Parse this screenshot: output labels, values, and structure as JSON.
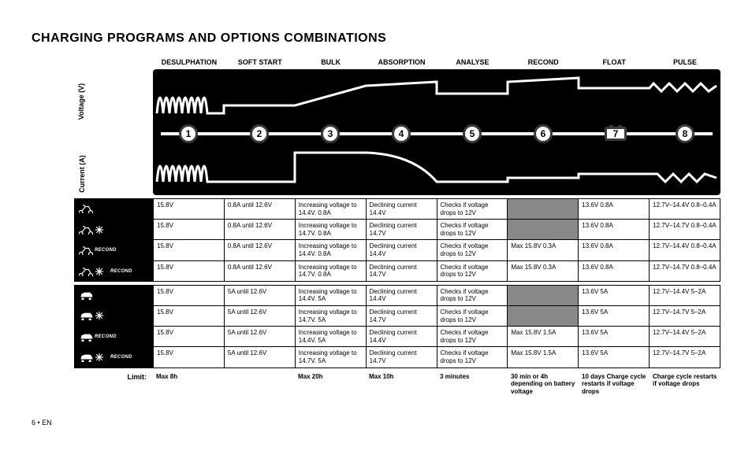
{
  "title": "CHARGING PROGRAMS AND OPTIONS COMBINATIONS",
  "stages": [
    "DESULPHATION",
    "SOFT START",
    "BULK",
    "ABSORPTION",
    "ANALYSE",
    "RECOND",
    "FLOAT",
    "PULSE"
  ],
  "stage_numbers": [
    "1",
    "2",
    "3",
    "4",
    "5",
    "6",
    "7",
    "8"
  ],
  "axis": {
    "voltage": "Voltage (V)",
    "current": "Current (A)"
  },
  "chart": {
    "bg_color": "#000000",
    "line_color": "#ffffff",
    "circle_fill": "#ffffff",
    "circle_border": "#3a3a3a"
  },
  "icons": {
    "motorcycle": "motorcycle-icon",
    "snowflake": "snowflake-icon",
    "car": "car-icon",
    "recond_label": "RECOND"
  },
  "table_moto": {
    "rows": [
      {
        "mode": [
          "moto"
        ],
        "cells": [
          "15.8V",
          "0.8A until 12.6V",
          "Increasing voltage to 14.4V. 0.8A",
          "Declining current 14.4V",
          "Checks if voltage drops to 12V",
          "",
          "13.6V 0.8A",
          "12.7V–14.4V 0.8–0.4A"
        ],
        "grey": [
          5
        ]
      },
      {
        "mode": [
          "moto",
          "snow"
        ],
        "cells": [
          "15.8V",
          "0.8A until 12.6V",
          "Increasing voltage to 14.7V. 0.8A",
          "Declining current 14.7V",
          "Checks if voltage drops to 12V",
          "",
          "13.6V 0.8A",
          "12.7V–14.7V 0.8–0.4A"
        ],
        "grey": [
          5
        ]
      },
      {
        "mode": [
          "moto",
          "recond"
        ],
        "cells": [
          "15.8V",
          "0.8A until 12.6V",
          "Increasing voltage to 14.4V. 0.8A",
          "Declining current 14.4V",
          "Checks if voltage drops to 12V",
          "Max 15.8V 0.3A",
          "13.6V 0.8A",
          "12.7V–14.4V 0.8–0.4A"
        ],
        "grey": []
      },
      {
        "mode": [
          "moto",
          "snow",
          "recond"
        ],
        "cells": [
          "15.8V",
          "0.8A until 12.6V",
          "Increasing voltage to 14.7V. 0.8A",
          "Declining current 14.7V",
          "Checks if voltage drops to 12V",
          "Max 15.8V 0.3A",
          "13.6V 0.8A",
          "12.7V–14.7V 0.8–0.4A"
        ],
        "grey": []
      }
    ]
  },
  "table_car": {
    "rows": [
      {
        "mode": [
          "car"
        ],
        "cells": [
          "15.8V",
          "5A until 12.6V",
          "Increasing voltage to 14.4V. 5A",
          "Declining current 14.4V",
          "Checks if voltage drops to 12V",
          "",
          "13.6V 5A",
          "12.7V–14.4V 5–2A"
        ],
        "grey": [
          5
        ]
      },
      {
        "mode": [
          "car",
          "snow"
        ],
        "cells": [
          "15.8V",
          "5A until 12.6V",
          "Increasing voltage to 14.7V. 5A",
          "Declining current 14.7V",
          "Checks if voltage drops to 12V",
          "",
          "13.6V 5A",
          "12.7V–14.7V 5–2A"
        ],
        "grey": [
          5
        ]
      },
      {
        "mode": [
          "car",
          "recond"
        ],
        "cells": [
          "15.8V",
          "5A until 12.6V",
          "Increasing voltage to 14.4V. 5A",
          "Declining current 14.4V",
          "Checks if voltage drops to 12V",
          "Max 15.8V 1.5A",
          "13.6V 5A",
          "12.7V–14.4V 5–2A"
        ],
        "grey": []
      },
      {
        "mode": [
          "car",
          "snow",
          "recond"
        ],
        "cells": [
          "15.8V",
          "5A until 12.6V",
          "Increasing voltage to 14.7V. 5A",
          "Declining current 14.7V",
          "Checks if voltage drops to 12V",
          "Max 15.8V 1.5A",
          "13.6V 5A",
          "12.7V–14.7V 5–2A"
        ],
        "grey": []
      }
    ]
  },
  "limits": {
    "label": "Limit:",
    "values": [
      "Max 8h",
      "",
      "Max 20h",
      "Max 10h",
      "3 minutes",
      "30 min or 4h depending on battery voltage",
      "10 days Charge cycle restarts if voltage drops",
      "Charge cycle restarts if voltage drops"
    ]
  },
  "footer": "6  •  EN"
}
